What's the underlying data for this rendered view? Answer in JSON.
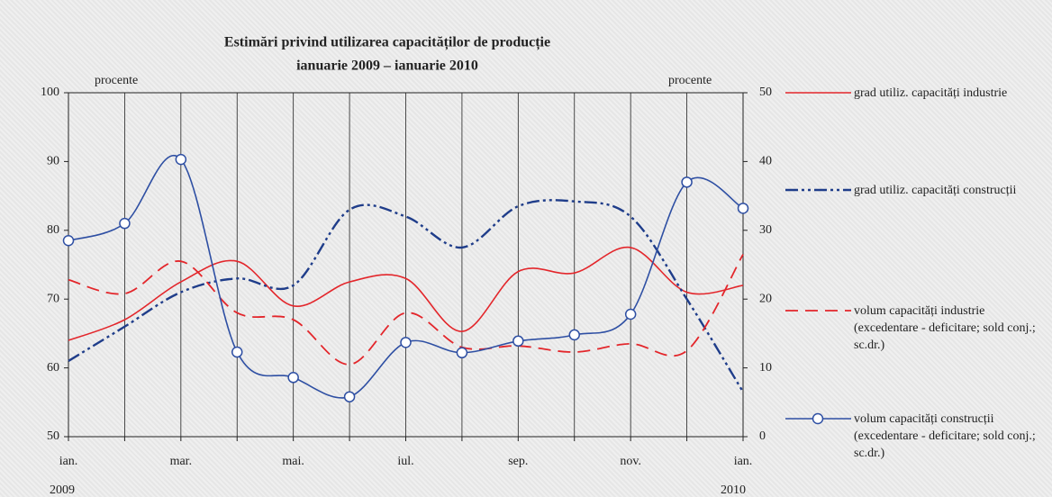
{
  "chart_data": {
    "type": "line",
    "title": "Estimări privind utilizarea capacităților de producție",
    "subtitle": "ianuarie 2009 – ianuarie 2010",
    "y_label": "procente",
    "y2_label": "procente",
    "categories": [
      "ian.",
      null,
      "mar.",
      null,
      "mai.",
      null,
      "iul.",
      null,
      "sep.",
      null,
      "nov.",
      null,
      "ian."
    ],
    "year_labels": [
      "2009",
      "2010"
    ],
    "ylim": [
      50,
      100
    ],
    "yticks": [
      50,
      60,
      70,
      80,
      90,
      100
    ],
    "y2lim": [
      0,
      50
    ],
    "y2ticks": [
      0,
      10,
      20,
      30,
      40,
      50
    ],
    "series": [
      {
        "name": "grad utiliz. capacități industrie",
        "color": "#e3262b",
        "style": "solid",
        "values": [
          64,
          67,
          72.5,
          75.5,
          69,
          72.5,
          73,
          65.3,
          74,
          73.8,
          77.5,
          71,
          72
        ]
      },
      {
        "name": "grad utiliz. capacități construcții",
        "color": "#1f3d8a",
        "style": "dashdot",
        "values": [
          61,
          66,
          71,
          73,
          72,
          83,
          82,
          77.5,
          83.5,
          84.2,
          82,
          70,
          56.5
        ]
      },
      {
        "name": "volum capacități industrie (excedentare - deficitare; sold conj.; sc.dr.)",
        "color": "#e3262b",
        "style": "dashed",
        "axis": "y2",
        "values": [
          22.8,
          20.8,
          25.5,
          18,
          17,
          10.5,
          18,
          13,
          13.2,
          12.3,
          13.5,
          12.5,
          26.5
        ]
      },
      {
        "name": "volum capacități construcții (excedentare - deficitare; sold conj.; sc.dr.)",
        "color": "#2e4fa3",
        "style": "marker",
        "axis": "y2",
        "values": [
          28.5,
          31,
          40.3,
          12.3,
          8.6,
          5.8,
          13.7,
          12.2,
          13.9,
          14.8,
          17.8,
          37,
          33.2
        ]
      }
    ]
  }
}
